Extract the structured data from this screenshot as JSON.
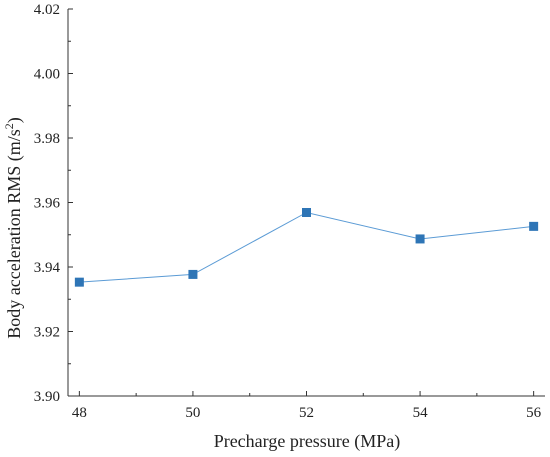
{
  "chart_data": {
    "type": "line",
    "title": "",
    "xlabel": "Precharge pressure (MPa)",
    "ylabel": "Body acceleration RMS (m/s",
    "ylabel_sup": "2",
    "ylabel_end": ")",
    "x": [
      48,
      50,
      52,
      54,
      56
    ],
    "xlim": [
      47.8,
      56.2
    ],
    "xticks": [
      "48",
      "50",
      "52",
      "54",
      "56"
    ],
    "ylim": [
      3.9,
      4.02
    ],
    "yticks": [
      "3.90",
      "3.92",
      "3.94",
      "3.96",
      "3.98",
      "4.00",
      "4.02"
    ],
    "series": [
      {
        "values": [
          3.9353,
          3.9377,
          3.9569,
          3.9487,
          3.9526
        ],
        "color": "#5b9bd5",
        "marker_color": "#2e75b6",
        "marker": "square"
      }
    ],
    "grid": false,
    "legend": "none"
  }
}
